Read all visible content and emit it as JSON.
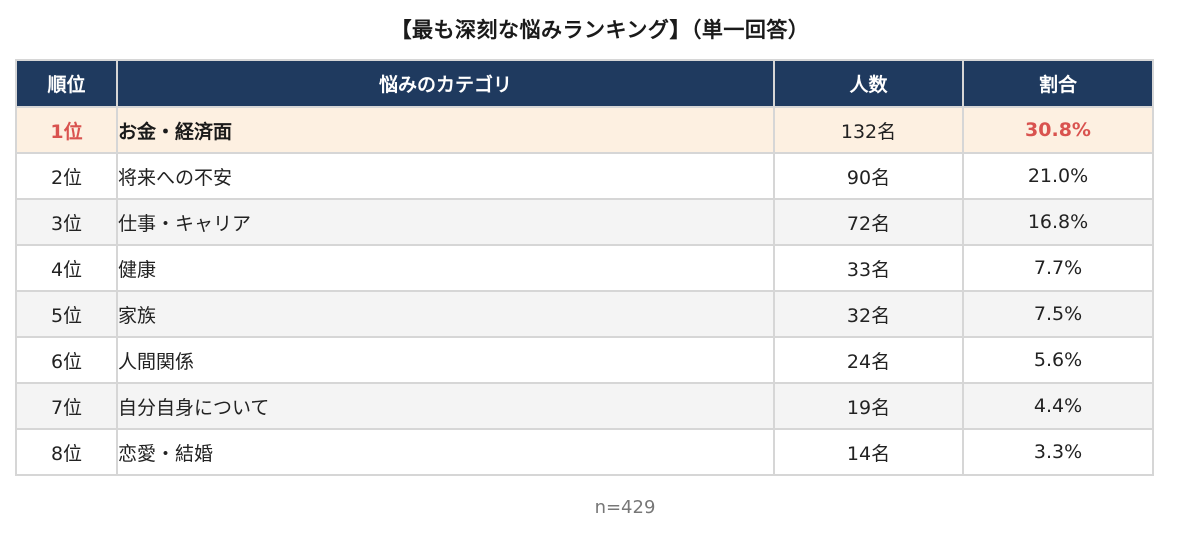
{
  "title": "【最も深刻な悩みランキング】（単一回答）",
  "table": {
    "headers": {
      "rank": "順位",
      "category": "悩みのカテゴリ",
      "count": "人数",
      "percent": "割合"
    },
    "rows": [
      {
        "rank": "1位",
        "category": "お金・経済面",
        "count": "132名",
        "percent": "30.8%"
      },
      {
        "rank": "2位",
        "category": "将来への不安",
        "count": "90名",
        "percent": "21.0%"
      },
      {
        "rank": "3位",
        "category": "仕事・キャリア",
        "count": "72名",
        "percent": "16.8%"
      },
      {
        "rank": "4位",
        "category": "健康",
        "count": "33名",
        "percent": "7.7%"
      },
      {
        "rank": "5位",
        "category": "家族",
        "count": "32名",
        "percent": "7.5%"
      },
      {
        "rank": "6位",
        "category": "人間関係",
        "count": "24名",
        "percent": "5.6%"
      },
      {
        "rank": "7位",
        "category": "自分自身について",
        "count": "19名",
        "percent": "4.4%"
      },
      {
        "rank": "8位",
        "category": "恋愛・結婚",
        "count": "14名",
        "percent": "3.3%"
      }
    ]
  },
  "footnote": "n=429",
  "colors": {
    "header_bg": "#1f3a5f",
    "header_text": "#ffffff",
    "top_row_bg": "#fdf0e1",
    "highlight_text": "#d9534f",
    "stripe_bg": "#f4f4f4",
    "border": "#d6d6d6"
  },
  "chart_data": {
    "type": "table",
    "title": "【最も深刻な悩みランキング】（単一回答）",
    "columns": [
      "順位",
      "悩みのカテゴリ",
      "人数",
      "割合"
    ],
    "categories": [
      "お金・経済面",
      "将来への不安",
      "仕事・キャリア",
      "健康",
      "家族",
      "人間関係",
      "自分自身について",
      "恋愛・結婚"
    ],
    "series": [
      {
        "name": "人数",
        "values": [
          132,
          90,
          72,
          33,
          32,
          24,
          19,
          14
        ]
      },
      {
        "name": "割合(%)",
        "values": [
          30.8,
          21.0,
          16.8,
          7.7,
          7.5,
          5.6,
          4.4,
          3.3
        ]
      }
    ],
    "n": 429
  }
}
